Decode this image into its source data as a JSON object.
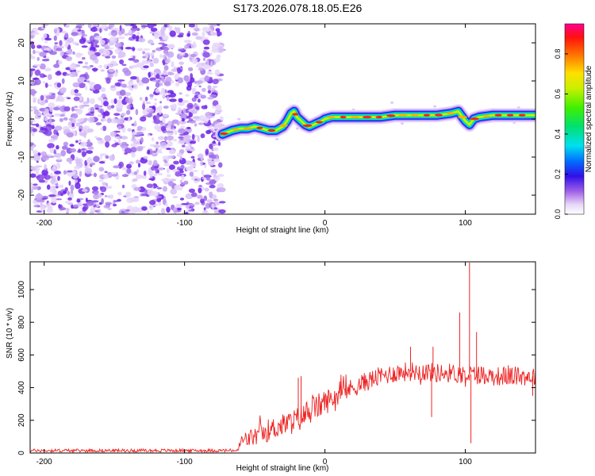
{
  "title": "S173.2026.078.18.05.E26",
  "colors": {
    "snr_line": "#ee2222",
    "background": "#ffffff",
    "axis": "#000000"
  },
  "chart_data": [
    {
      "type": "heatmap",
      "name": "spectrogram",
      "xlabel": "Height of straight line (km)",
      "ylabel": "Frequency (Hz)",
      "xlim": [
        -210,
        150
      ],
      "ylim": [
        -25,
        25
      ],
      "xticks": [
        -200,
        -100,
        0,
        100
      ],
      "yticks": [
        -20,
        -10,
        0,
        10,
        20
      ],
      "noise_region_x": [
        -210,
        -73
      ],
      "signal_ridge": {
        "x": [
          -73,
          -66,
          -60,
          -55,
          -50,
          -45,
          -40,
          -35,
          -30,
          -27,
          -24,
          -22,
          -20,
          -17,
          -14,
          -11,
          -8,
          -5,
          -2,
          0,
          5,
          10,
          20,
          30,
          40,
          50,
          60,
          70,
          80,
          90,
          95,
          97,
          100,
          103,
          106,
          110,
          120,
          130,
          140,
          150
        ],
        "freq": [
          -4,
          -3,
          -2.5,
          -2.5,
          -2,
          -2.5,
          -3,
          -3,
          -2,
          -0.5,
          1.5,
          2,
          0.5,
          -0.5,
          -1.5,
          -2,
          -1.5,
          -1,
          -0.5,
          0,
          0.5,
          0.5,
          0.5,
          0.5,
          0.5,
          1,
          1,
          1,
          1,
          1.5,
          2,
          1,
          -0.5,
          -1.5,
          0,
          0.5,
          1,
          1,
          1,
          1
        ]
      },
      "colorbar": {
        "label": "Normalized spectral amplitude",
        "range": [
          0,
          0.95
        ],
        "ticks": [
          "0.0",
          "0.2",
          "0.4",
          "0.6",
          "0.8"
        ]
      }
    },
    {
      "type": "line",
      "name": "snr",
      "xlabel": "Height of straight line (km)",
      "ylabel": "SNR (10 * v/v)",
      "xlim": [
        -210,
        150
      ],
      "ylim": [
        0,
        1170
      ],
      "xticks": [
        -200,
        -100,
        0,
        100
      ],
      "yticks": [
        0,
        200,
        400,
        600,
        800,
        1000
      ],
      "envelope": {
        "x": [
          -210,
          -62,
          -60,
          -50,
          -40,
          -30,
          -20,
          -10,
          0,
          10,
          20,
          30,
          40,
          50,
          60,
          70,
          80,
          90,
          100,
          110,
          120,
          130,
          140,
          150
        ],
        "mean": [
          15,
          15,
          70,
          100,
          140,
          170,
          200,
          260,
          310,
          360,
          400,
          440,
          470,
          490,
          500,
          500,
          490,
          490,
          480,
          480,
          470,
          470,
          470,
          470
        ],
        "noise": [
          10,
          10,
          50,
          60,
          70,
          70,
          80,
          80,
          80,
          60,
          60,
          60,
          60,
          60,
          60,
          60,
          60,
          60,
          60,
          60,
          60,
          60,
          60,
          60
        ]
      },
      "peaks": [
        {
          "x": 103,
          "y": 1165
        },
        {
          "x": 96,
          "y": 860
        },
        {
          "x": 104,
          "y": 60
        },
        {
          "x": 76,
          "y": 220
        },
        {
          "x": 61,
          "y": 650
        },
        {
          "x": 77,
          "y": 650
        },
        {
          "x": -17,
          "y": 470
        },
        {
          "x": -19,
          "y": 460
        },
        {
          "x": 108,
          "y": 740
        },
        {
          "x": 148,
          "y": 350
        }
      ]
    }
  ]
}
